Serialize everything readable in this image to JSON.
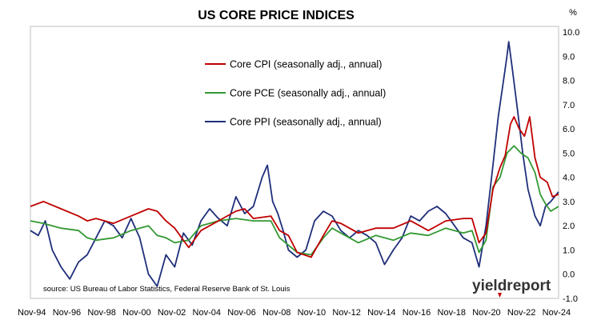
{
  "chart_data": {
    "type": "line",
    "title": "US CORE PRICE INDICES",
    "ylabel": "%",
    "ylim": [
      -1.0,
      10.0
    ],
    "y_ticks": [
      "10.0",
      "9.0",
      "8.0",
      "7.0",
      "6.0",
      "5.0",
      "4.0",
      "3.0",
      "2.0",
      "1.0",
      "0.0",
      "-1.0"
    ],
    "x_ticks": [
      "Nov-94",
      "Nov-96",
      "Nov-98",
      "Nov-00",
      "Nov-02",
      "Nov-04",
      "Nov-06",
      "Nov-08",
      "Nov-10",
      "Nov-12",
      "Nov-14",
      "Nov-16",
      "Nov-18",
      "Nov-20",
      "Nov-22",
      "Nov-24"
    ],
    "x_tick_years": [
      1994.83,
      1996.83,
      1998.83,
      2000.83,
      2002.83,
      2004.83,
      2006.83,
      2008.83,
      2010.83,
      2012.83,
      2014.83,
      2016.83,
      2018.83,
      2020.83,
      2022.83,
      2024.83
    ],
    "xlim": [
      1994.75,
      2024.95
    ],
    "legend_position": "upper-left",
    "grid": false,
    "series": [
      {
        "name": "Core CPI (seasonally adj., annual)",
        "color": "#c00000",
        "x": [
          1994.75,
          1995.5,
          1996.5,
          1997.5,
          1998.0,
          1998.5,
          1999.5,
          2000.5,
          2001.5,
          2002.0,
          2002.5,
          2003.0,
          2003.8,
          2004.5,
          2005.5,
          2006.5,
          2007.0,
          2007.5,
          2008.5,
          2009.0,
          2009.5,
          2010.0,
          2010.8,
          2011.5,
          2012.0,
          2012.5,
          2013.5,
          2014.5,
          2015.5,
          2016.5,
          2017.5,
          2018.5,
          2019.5,
          2020.0,
          2020.4,
          2020.8,
          2021.2,
          2021.6,
          2021.9,
          2022.2,
          2022.4,
          2022.7,
          2023.0,
          2023.3,
          2023.6,
          2023.9,
          2024.3,
          2024.6,
          2024.95
        ],
        "values": [
          2.8,
          3.0,
          2.7,
          2.4,
          2.2,
          2.3,
          2.1,
          2.4,
          2.7,
          2.6,
          2.2,
          1.9,
          1.1,
          1.8,
          2.2,
          2.6,
          2.7,
          2.3,
          2.4,
          1.8,
          1.6,
          0.9,
          0.7,
          1.6,
          2.2,
          2.1,
          1.7,
          1.9,
          1.9,
          2.2,
          1.8,
          2.2,
          2.3,
          2.3,
          1.3,
          1.7,
          3.5,
          4.4,
          4.9,
          6.2,
          6.5,
          6.0,
          5.7,
          6.5,
          4.8,
          4.0,
          3.8,
          3.2,
          3.3
        ]
      },
      {
        "name": "Core PCE (seasonally adj., annual)",
        "color": "#339933",
        "x": [
          1994.75,
          1995.5,
          1996.5,
          1997.5,
          1998.0,
          1998.5,
          1999.5,
          2000.5,
          2001.5,
          2002.0,
          2002.5,
          2003.0,
          2003.8,
          2004.5,
          2005.5,
          2006.5,
          2007.5,
          2008.5,
          2009.0,
          2009.5,
          2010.0,
          2010.8,
          2011.5,
          2012.0,
          2012.5,
          2013.5,
          2014.5,
          2015.5,
          2016.5,
          2017.5,
          2018.5,
          2019.5,
          2020.0,
          2020.4,
          2020.8,
          2021.2,
          2021.6,
          2022.0,
          2022.4,
          2022.8,
          2023.2,
          2023.6,
          2023.9,
          2024.2,
          2024.5,
          2024.95
        ],
        "values": [
          2.2,
          2.1,
          1.9,
          1.8,
          1.5,
          1.4,
          1.5,
          1.8,
          2.0,
          1.6,
          1.5,
          1.3,
          1.4,
          2.0,
          2.2,
          2.3,
          2.2,
          2.2,
          1.5,
          1.2,
          0.9,
          0.8,
          1.5,
          1.9,
          1.7,
          1.3,
          1.6,
          1.4,
          1.7,
          1.6,
          1.9,
          1.7,
          1.8,
          0.9,
          1.4,
          3.6,
          4.0,
          5.0,
          5.3,
          5.0,
          4.8,
          4.2,
          3.3,
          2.9,
          2.6,
          2.8
        ]
      },
      {
        "name": "Core PPI (seasonally adj., annual)",
        "color": "#1f2f7a",
        "x": [
          1994.75,
          1995.2,
          1995.6,
          1996.0,
          1996.5,
          1997.0,
          1997.5,
          1998.0,
          1998.5,
          1999.0,
          1999.5,
          2000.0,
          2000.5,
          2001.0,
          2001.5,
          2002.0,
          2002.5,
          2003.0,
          2003.5,
          2004.0,
          2004.5,
          2005.0,
          2005.5,
          2006.0,
          2006.5,
          2007.0,
          2007.5,
          2008.0,
          2008.3,
          2008.6,
          2008.9,
          2009.2,
          2009.5,
          2010.0,
          2010.5,
          2011.0,
          2011.5,
          2012.0,
          2012.5,
          2013.0,
          2013.5,
          2014.0,
          2014.5,
          2015.0,
          2015.5,
          2016.0,
          2016.5,
          2017.0,
          2017.5,
          2018.0,
          2018.5,
          2019.0,
          2019.5,
          2020.0,
          2020.4,
          2020.8,
          2021.2,
          2021.5,
          2021.8,
          2022.0,
          2022.1,
          2022.3,
          2022.6,
          2022.9,
          2023.2,
          2023.6,
          2023.9,
          2024.2,
          2024.5,
          2024.95
        ],
        "values": [
          1.8,
          1.6,
          2.2,
          1.0,
          0.3,
          -0.2,
          0.5,
          0.8,
          1.5,
          2.2,
          2.0,
          1.5,
          2.3,
          1.5,
          0.0,
          -0.5,
          0.8,
          0.3,
          1.7,
          1.2,
          2.2,
          2.7,
          2.3,
          2.0,
          3.2,
          2.5,
          2.8,
          4.0,
          4.5,
          3.0,
          2.5,
          1.8,
          1.0,
          0.7,
          1.0,
          2.2,
          2.6,
          2.4,
          1.8,
          1.5,
          1.8,
          1.6,
          1.3,
          0.4,
          1.0,
          1.5,
          2.4,
          2.2,
          2.6,
          2.8,
          2.5,
          2.0,
          1.5,
          1.3,
          0.3,
          2.0,
          4.5,
          6.5,
          8.0,
          9.0,
          9.6,
          8.5,
          6.8,
          5.0,
          3.5,
          2.4,
          2.0,
          2.8,
          3.0,
          3.4
        ]
      }
    ]
  },
  "source_note": "source: US Bureau of Labor Statistics, Federal Reserve Bank of St. Louis",
  "logo_text": "yieldreport",
  "colors": {
    "cpi": "#c00000",
    "pce": "#339933",
    "ppi": "#1f2f7a",
    "frame": "#bfbfbf"
  }
}
